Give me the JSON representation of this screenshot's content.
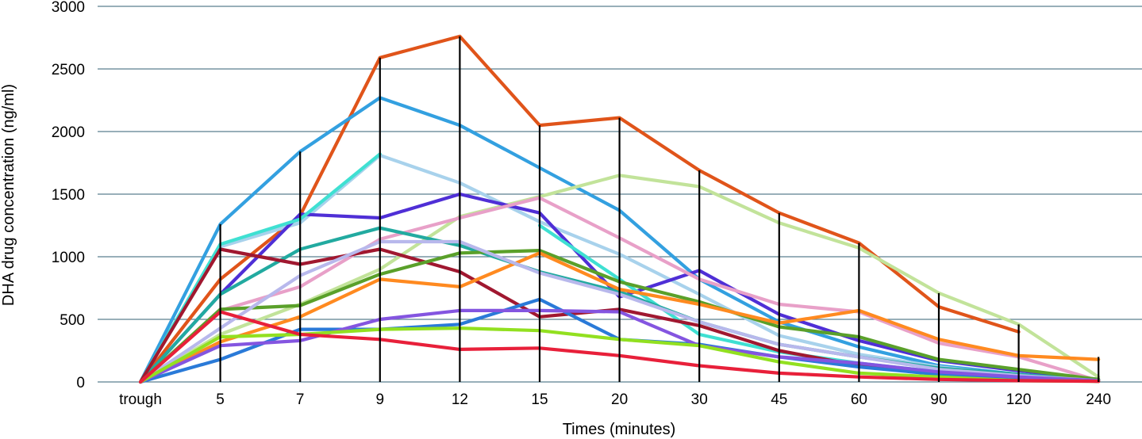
{
  "chart_data": {
    "type": "line",
    "xlabel": "Times (minutes)",
    "ylabel": "DHA drug concentration (ng/ml)",
    "categories": [
      "trough",
      "5",
      "7",
      "9",
      "12",
      "15",
      "20",
      "30",
      "45",
      "60",
      "90",
      "120",
      "240"
    ],
    "ylim": [
      0,
      3000
    ],
    "yticks": [
      0,
      500,
      1000,
      1500,
      2000,
      2500,
      3000
    ],
    "grid": true,
    "gridColor": "#5b7f8f",
    "legend": "none",
    "series": [
      {
        "color": "#e0541a",
        "values": [
          0,
          820,
          1330,
          2590,
          2760,
          2050,
          2110,
          1690,
          1350,
          1110,
          600,
          400,
          null
        ]
      },
      {
        "color": "#33a0e0",
        "values": [
          0,
          1260,
          1840,
          2270,
          2050,
          1710,
          1370,
          820,
          480,
          280,
          130,
          60,
          10
        ]
      },
      {
        "color": "#c2e39a",
        "values": [
          0,
          380,
          620,
          900,
          1320,
          1480,
          1650,
          1560,
          1270,
          1070,
          710,
          460,
          40
        ]
      },
      {
        "color": "#a8d2ec",
        "values": [
          0,
          1080,
          1270,
          1810,
          1590,
          1280,
          1020,
          700,
          370,
          220,
          120,
          50,
          10
        ]
      },
      {
        "color": "#4f2fd6",
        "values": [
          0,
          700,
          1340,
          1310,
          1500,
          1350,
          680,
          890,
          540,
          330,
          170,
          90,
          20
        ]
      },
      {
        "color": "#3fe0d2",
        "values": [
          0,
          1100,
          1300,
          1820,
          null,
          1250,
          820,
          380,
          240,
          150,
          80,
          30,
          5
        ]
      },
      {
        "color": "#e8a0c8",
        "values": [
          0,
          570,
          760,
          1140,
          1310,
          1470,
          1150,
          820,
          620,
          560,
          310,
          200,
          10
        ]
      },
      {
        "color": "#22aaa0",
        "values": [
          0,
          700,
          1060,
          1230,
          1090,
          880,
          720,
          480,
          300,
          200,
          110,
          60,
          10
        ]
      },
      {
        "color": "#a01830",
        "values": [
          0,
          1060,
          940,
          1060,
          880,
          520,
          580,
          450,
          250,
          130,
          70,
          30,
          5
        ]
      },
      {
        "color": "#5aa02a",
        "values": [
          0,
          580,
          610,
          860,
          1030,
          1050,
          800,
          640,
          440,
          360,
          180,
          100,
          20
        ]
      },
      {
        "color": "#ff8a20",
        "values": [
          0,
          320,
          520,
          820,
          760,
          1030,
          740,
          620,
          470,
          570,
          340,
          210,
          180
        ]
      },
      {
        "color": "#b8b8ec",
        "values": [
          0,
          430,
          850,
          1120,
          1120,
          870,
          700,
          480,
          300,
          200,
          100,
          50,
          10
        ]
      },
      {
        "color": "#2a7ad8",
        "values": [
          0,
          180,
          420,
          420,
          460,
          660,
          340,
          300,
          200,
          120,
          60,
          20,
          5
        ]
      },
      {
        "color": "#8455e0",
        "values": [
          0,
          290,
          330,
          500,
          570,
          570,
          560,
          290,
          200,
          150,
          80,
          40,
          10
        ]
      },
      {
        "color": "#92e020",
        "values": [
          0,
          360,
          380,
          420,
          430,
          410,
          340,
          290,
          160,
          70,
          40,
          10,
          5
        ]
      },
      {
        "color": "#e8203a",
        "values": [
          0,
          560,
          380,
          340,
          260,
          270,
          210,
          130,
          70,
          40,
          20,
          10,
          5
        ]
      }
    ],
    "error_bars": {
      "color": "#000000",
      "top": [
        null,
        1260,
        1840,
        2590,
        2760,
        2050,
        2110,
        1690,
        1350,
        1110,
        710,
        460,
        200
      ],
      "bottom": [
        null,
        0,
        0,
        0,
        0,
        0,
        0,
        0,
        0,
        0,
        0,
        0,
        0
      ]
    }
  }
}
